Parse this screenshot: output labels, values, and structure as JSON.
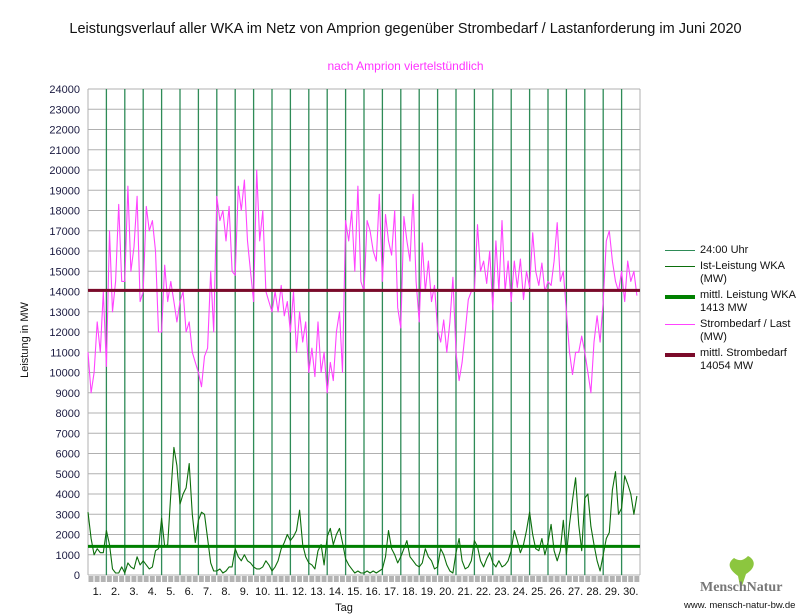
{
  "chart_data": {
    "type": "line",
    "title": "Leistungsverlauf aller WKA im Netz von Amprion gegenüber  Strombedarf / Lastanforderung im Juni 2020",
    "subtitle": "nach Amprion viertelstündlich",
    "xlabel": "Tag",
    "ylabel": "Leistung in MW",
    "ylim": [
      0,
      24000
    ],
    "ytick_step": 1000,
    "yticks": [
      "0",
      "1000",
      "2000",
      "3000",
      "4000",
      "5000",
      "6000",
      "7000",
      "8000",
      "9000",
      "10000",
      "11000",
      "12000",
      "13000",
      "14000",
      "15000",
      "16000",
      "17000",
      "18000",
      "19000",
      "20000",
      "21000",
      "22000",
      "23000",
      "24000"
    ],
    "days": 30,
    "xticks": [
      "1.",
      "2.",
      "3.",
      "4.",
      "5.",
      "6.",
      "7.",
      "8.",
      "9.",
      "10.",
      "11.",
      "12.",
      "13.",
      "14.",
      "15.",
      "16.",
      "17.",
      "18.",
      "19.",
      "20.",
      "21.",
      "22.",
      "23.",
      "24.",
      "25.",
      "26.",
      "27.",
      "28.",
      "29.",
      "30."
    ],
    "samples_per_day": 6,
    "grid": true,
    "legend_position": "right",
    "colors": {
      "day_line": "#2e8b57",
      "wind": "#0b6e0b",
      "wind_mean": "#008000",
      "demand": "#ff44ff",
      "demand_mean": "#7b0a2a",
      "grid": "#b0b0b0",
      "tickbar": "#b3b3b3"
    },
    "legend": [
      {
        "label": "24:00 Uhr",
        "series": "day_line"
      },
      {
        "label": "Ist-Leistung WKA\n(MW)",
        "series": "wind"
      },
      {
        "label": "mittl. Leistung WKA\n1413 MW",
        "series": "wind_mean"
      },
      {
        "label": "Strombedarf / Last\n(MW)",
        "series": "demand"
      },
      {
        "label": "mittl. Strombedarf\n14054 MW",
        "series": "demand_mean"
      }
    ],
    "wind_mean": 1413,
    "demand_mean": 14054,
    "series": [
      {
        "name": "Ist-Leistung WKA (MW)",
        "key": "wind",
        "values": [
          3100,
          1800,
          1000,
          1300,
          1100,
          1100,
          2200,
          1500,
          300,
          100,
          100,
          400,
          100,
          600,
          400,
          300,
          900,
          500,
          700,
          500,
          300,
          400,
          1200,
          1300,
          2800,
          1400,
          1500,
          4000,
          6300,
          5400,
          3500,
          4000,
          4300,
          5500,
          3000,
          1600,
          2700,
          3100,
          3000,
          1800,
          600,
          200,
          200,
          300,
          100,
          200,
          400,
          400,
          1300,
          900,
          700,
          1000,
          700,
          600,
          400,
          300,
          300,
          400,
          700,
          500,
          200,
          400,
          700,
          1300,
          1600,
          2000,
          1700,
          1900,
          2200,
          3200,
          1500,
          900,
          600,
          500,
          300,
          1200,
          1500,
          500,
          1900,
          2300,
          1500,
          2000,
          2300,
          1600,
          800,
          500,
          300,
          100,
          200,
          100,
          100,
          200,
          100,
          200,
          100,
          200,
          300,
          900,
          2200,
          1300,
          1000,
          600,
          900,
          1300,
          1700,
          900,
          700,
          500,
          400,
          600,
          1300,
          900,
          700,
          300,
          400,
          1300,
          1000,
          500,
          200,
          100,
          1100,
          1800,
          700,
          300,
          400,
          700,
          1700,
          1400,
          700,
          400,
          800,
          1100,
          600,
          400,
          700,
          400,
          500,
          700,
          1200,
          2200,
          1700,
          1100,
          1500,
          2200,
          3100,
          2000,
          1300,
          1200,
          1800,
          1000,
          1600,
          2500,
          1200,
          700,
          1200,
          2700,
          1000,
          2500,
          3700,
          4800,
          2500,
          1200,
          3800,
          4000,
          2400,
          1500,
          700,
          200,
          1000,
          1800,
          2100,
          4200,
          5100,
          3000,
          3300,
          4900,
          4500,
          4000,
          3000,
          3900
        ]
      },
      {
        "name": "Strombedarf / Last (MW)",
        "key": "demand",
        "values": [
          11000,
          9000,
          10000,
          12500,
          11000,
          14000,
          10300,
          17000,
          13000,
          14500,
          18300,
          14500,
          14500,
          19200,
          15000,
          16200,
          18700,
          13500,
          14000,
          18200,
          17000,
          17500,
          16000,
          12000,
          12000,
          15300,
          13500,
          14500,
          13500,
          12500,
          13500,
          14000,
          12000,
          12500,
          11000,
          10500,
          10000,
          9300,
          10800,
          11200,
          15000,
          12000,
          18700,
          17500,
          18000,
          16500,
          18200,
          15000,
          14800,
          19200,
          18000,
          19500,
          16500,
          15000,
          13500,
          20000,
          16500,
          18000,
          14000,
          13500,
          13000,
          14000,
          13000,
          14300,
          12800,
          13500,
          12000,
          14000,
          11000,
          13000,
          11500,
          12500,
          10000,
          11200,
          9800,
          12500,
          10000,
          11000,
          9000,
          10500,
          9600,
          12000,
          13000,
          10000,
          17500,
          16500,
          18000,
          15000,
          19200,
          14500,
          14000,
          17500,
          17000,
          16000,
          15500,
          18800,
          14500,
          17800,
          16500,
          15800,
          18000,
          13200,
          12200,
          17700,
          16500,
          15500,
          18800,
          14500,
          12500,
          16400,
          14000,
          15500,
          13500,
          14300,
          12100,
          11500,
          12600,
          11000,
          12500,
          14700,
          11000,
          9600,
          10500,
          12000,
          13600,
          14000,
          14000,
          17300,
          15000,
          15500,
          14400,
          16000,
          13100,
          16500,
          14000,
          17500,
          14000,
          15500,
          13500,
          15500,
          14200,
          15600,
          13600,
          15000,
          14200,
          16900,
          15000,
          14300,
          15400,
          14000,
          14500,
          14300,
          15500,
          17400,
          14500,
          15000,
          13000,
          11000,
          9900,
          11000,
          11000,
          11800,
          11000,
          10000,
          9000,
          11500,
          12800,
          11500,
          13500,
          16500,
          17000,
          15500,
          14500,
          14000,
          15000,
          13500,
          15500,
          14500,
          15000,
          13800
        ]
      }
    ]
  },
  "footer": {
    "logo_text": "MenschNatur",
    "url": "www. mensch-natur-bw.de"
  }
}
